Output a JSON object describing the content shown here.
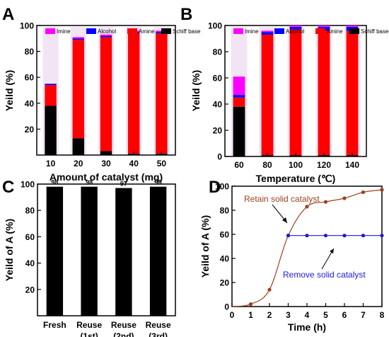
{
  "chart_data": [
    {
      "panel": "A",
      "type": "bar",
      "stacked": true,
      "xlabel": "Amount of catalyst (mg)",
      "ylabel": "Yeild (%)",
      "categories": [
        "10",
        "20",
        "30",
        "40",
        "50"
      ],
      "ylim": [
        0,
        100
      ],
      "yticks": [
        "20",
        "40",
        "60",
        "80",
        "100"
      ],
      "legend": "top",
      "legend_labels": [
        "Imine",
        "Alcohol",
        "Amine",
        "Schiff base"
      ],
      "series": [
        {
          "name": "Schiff base",
          "color": "#000000",
          "values": [
            38,
            13,
            3,
            1,
            1
          ]
        },
        {
          "name": "Amine",
          "color": "#ff0000",
          "values": [
            16,
            76,
            88,
            93,
            93
          ]
        },
        {
          "name": "Alcohol",
          "color": "#0000ff",
          "values": [
            1,
            1,
            1,
            1,
            1
          ]
        },
        {
          "name": "Imine",
          "color": "#ff00ff",
          "values": [
            0,
            1,
            1,
            1,
            1
          ]
        }
      ]
    },
    {
      "panel": "B",
      "type": "bar",
      "stacked": true,
      "xlabel": "Temperature (℃)",
      "ylabel": "Yeild (%)",
      "categories": [
        "60",
        "80",
        "100",
        "120",
        "140"
      ],
      "ylim": [
        0,
        100
      ],
      "yticks": [
        "0",
        "20",
        "40",
        "60",
        "80",
        "100"
      ],
      "legend": "top",
      "legend_labels": [
        "Imine",
        "Alcohol",
        "Amine",
        "Schiff base"
      ],
      "series": [
        {
          "name": "Schiff base",
          "color": "#000000",
          "values": [
            38,
            1,
            1,
            1,
            1
          ]
        },
        {
          "name": "Amine",
          "color": "#ff0000",
          "values": [
            7,
            92,
            96,
            95,
            95
          ]
        },
        {
          "name": "Alcohol",
          "color": "#0000ff",
          "values": [
            2,
            2,
            2,
            3,
            3
          ]
        },
        {
          "name": "Imine",
          "color": "#ff00ff",
          "values": [
            14,
            1,
            1,
            1,
            1
          ]
        }
      ]
    },
    {
      "panel": "C",
      "type": "bar",
      "xlabel": "",
      "ylabel": "Yeild of A (%)",
      "categories": [
        "Fresh",
        "Reuse\n(1st)",
        "Reuse\n(2nd)",
        "Reuse\n(3rd)"
      ],
      "values": [
        98,
        98,
        97,
        98
      ],
      "data_labels": [
        "98",
        "98",
        "97",
        "98"
      ],
      "ylim": [
        0,
        100
      ],
      "yticks": [
        "20",
        "40",
        "60",
        "80",
        "100"
      ],
      "color": "#000000"
    },
    {
      "panel": "D",
      "type": "line",
      "xlabel": "Time (h)",
      "ylabel": "Yeild of A (%)",
      "xlim": [
        0,
        8
      ],
      "ylim": [
        0,
        100
      ],
      "xticks": [
        "0",
        "1",
        "2",
        "3",
        "4",
        "5",
        "6",
        "7",
        "8"
      ],
      "yticks": [
        "0",
        "20",
        "40",
        "60",
        "80",
        "100"
      ],
      "series": [
        {
          "name": "Retain solid catalyst",
          "color": "#a0401e",
          "x": [
            1,
            2,
            3,
            4,
            5,
            6,
            7,
            8
          ],
          "y": [
            2,
            14,
            59,
            83,
            87,
            90,
            95,
            97
          ]
        },
        {
          "name": "Remove solid catalyst",
          "color": "#1a1adc",
          "x": [
            3,
            4,
            5,
            6,
            7,
            8
          ],
          "y": [
            59,
            59,
            59,
            59,
            59,
            59
          ]
        }
      ],
      "annotations": [
        "Retain solid catalyst",
        "Remove solid catalyst"
      ]
    }
  ],
  "panel_letters": [
    "A",
    "B",
    "C",
    "D"
  ]
}
